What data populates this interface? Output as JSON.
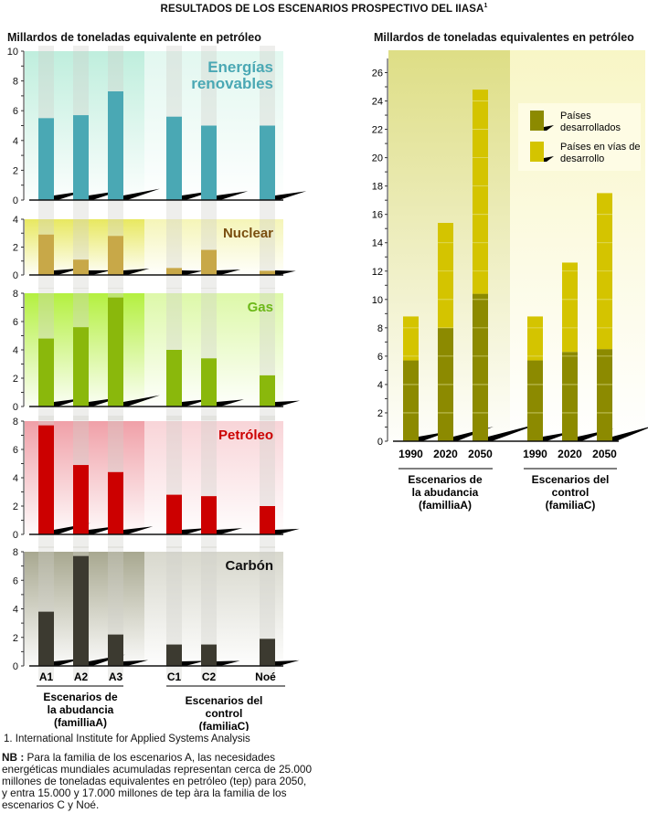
{
  "title": "RESULTADOS DE LOS ESCENARIOS PROSPECTIVO DEL IIASA",
  "title_footnote_mark": "1",
  "chart_data": [
    {
      "type": "bar",
      "id": "left",
      "ylabel": "Millardos de toneladas equivalente en petróleo",
      "categories": [
        "A1",
        "A2",
        "A3",
        "C1",
        "C2",
        "Noé"
      ],
      "groups": [
        {
          "label": "Escenarios de la abudancia (familliaA)",
          "lines": [
            "Escenarios de",
            "la abudancia",
            "(familliaA)"
          ],
          "categories": [
            "A1",
            "A2",
            "A3"
          ]
        },
        {
          "label": "Escenarios del control (familiaC)",
          "lines": [
            "Escenarios del",
            "control",
            "(familiaC)"
          ],
          "categories": [
            "C1",
            "C2",
            "Noé"
          ]
        }
      ],
      "panels": [
        {
          "name": "Energías renovables",
          "title_lines": [
            "Energías",
            "renovables"
          ],
          "color": "#4aa8b4",
          "title_color": "#4aa8b4",
          "bg": "#bfeedd",
          "ylim": [
            0,
            10
          ],
          "ticks": [
            0,
            2,
            4,
            6,
            8,
            10
          ],
          "values": [
            5.5,
            5.7,
            7.3,
            5.6,
            5.0,
            5.0
          ]
        },
        {
          "name": "Nuclear",
          "title_lines": [
            "Nuclear"
          ],
          "color": "#c8a848",
          "title_color": "#7a4e10",
          "bg": "#e8e860",
          "ylim": [
            0,
            4
          ],
          "ticks": [
            0,
            2,
            4
          ],
          "values": [
            2.9,
            1.1,
            2.8,
            0.5,
            1.8,
            0.3
          ]
        },
        {
          "name": "Gas",
          "title_lines": [
            "Gas"
          ],
          "color": "#8ab80c",
          "title_color": "#6cb818",
          "bg": "#b4f040",
          "ylim": [
            0,
            8
          ],
          "ticks": [
            0,
            2,
            4,
            6,
            8
          ],
          "values": [
            4.8,
            5.6,
            7.7,
            4.0,
            3.4,
            2.2
          ]
        },
        {
          "name": "Petróleo",
          "title_lines": [
            "Petróleo"
          ],
          "color": "#cc0000",
          "title_color": "#cc0000",
          "bg": "#f0a0a8",
          "ylim": [
            0,
            8
          ],
          "ticks": [
            0,
            2,
            4,
            6,
            8
          ],
          "values": [
            7.7,
            4.9,
            4.4,
            2.8,
            2.7,
            2.0
          ]
        },
        {
          "name": "Carbón",
          "title_lines": [
            "Carbón"
          ],
          "color": "#3c3a30",
          "title_color": "#111111",
          "bg": "#a8a890",
          "ylim": [
            0,
            8
          ],
          "ticks": [
            0,
            2,
            4,
            6,
            8
          ],
          "values": [
            3.8,
            7.7,
            2.2,
            1.5,
            1.5,
            1.9
          ]
        }
      ]
    },
    {
      "type": "bar",
      "id": "right",
      "stacked": true,
      "ylabel": "Millardos de toneladas equivalentes en petróleo",
      "categories": [
        "1990",
        "2020",
        "2050",
        "1990",
        "2020",
        "2050"
      ],
      "groups": [
        {
          "label": "Escenarios de la abudancia (familliaA)",
          "lines": [
            "Escenarios de",
            "la abudancia",
            "(familliaA)"
          ]
        },
        {
          "label": "Escenarios del control (familiaC)",
          "lines": [
            "Escenarios del",
            "control",
            "(familiaC)"
          ]
        }
      ],
      "ylim": [
        0,
        27
      ],
      "ticks": [
        0,
        2,
        4,
        6,
        8,
        10,
        12,
        14,
        16,
        18,
        20,
        22,
        24,
        26
      ],
      "series": [
        {
          "name": "Países desarrollados",
          "lines": [
            "Países",
            "desarrollados"
          ],
          "color": "#8c8a00",
          "values": [
            5.7,
            8.0,
            10.4,
            5.7,
            6.3,
            6.5
          ]
        },
        {
          "name": "Países en vías de desarrollo",
          "lines": [
            "Países en vías de",
            "desarrollo"
          ],
          "color": "#d4c400",
          "values": [
            3.1,
            7.4,
            14.4,
            3.1,
            6.3,
            11.0
          ]
        }
      ],
      "totals": [
        8.8,
        15.4,
        24.8,
        8.8,
        12.6,
        17.5
      ],
      "legend": "top-right"
    }
  ],
  "footnote": "1.  International Institute for Applied Systems Analysis",
  "nb_label": "NB :",
  "nb_text": " Para la familia de los escenarios A, las necesidades energéticas mundiales acumuladas representan cerca de 25.000 millones de toneladas equivalentes en petróleo (tep) para 2050, y entra 15.000 y 17.000 millones de tep àra la familia de los escenarios C y Noé."
}
